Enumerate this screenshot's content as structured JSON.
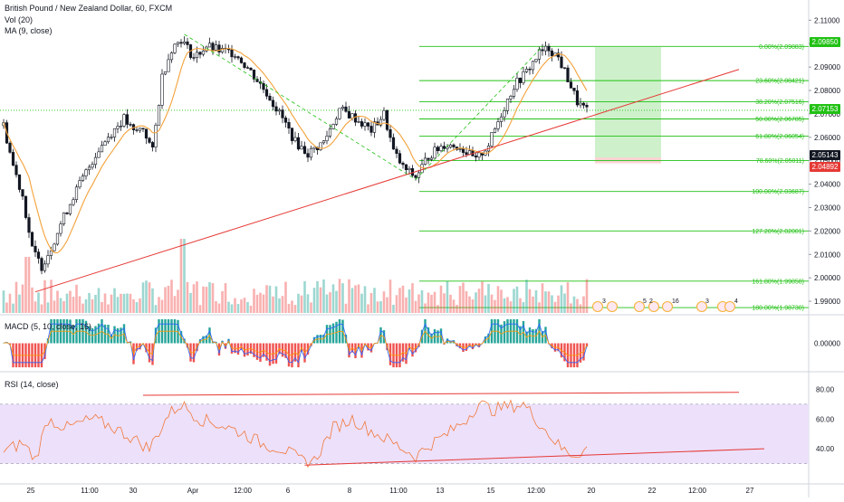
{
  "header": {
    "symbol_title": "British Pound / New Zealand Dollar, 60, FXCM",
    "vol_label": "Vol (20)",
    "ma_label": "MA (9, close)",
    "macd_label": "MACD (5, 10, close, 16)",
    "rsi_label": "RSI (14, close)"
  },
  "colors": {
    "bull": "#26a69a",
    "bear": "#ef5350",
    "ma": "#f4a23a",
    "fib": "#21c114",
    "trendline": "#e53935",
    "rsi_band": "#ede0fb",
    "rsi_line": "#f07a3c",
    "macd_line": "#2962ff",
    "signal_line": "#ff9800"
  },
  "price_axis": {
    "ticks": [
      "2.11000",
      "2.10000",
      "2.09000",
      "2.08000",
      "2.07000",
      "2.06000",
      "2.05000",
      "2.04000",
      "2.03000",
      "2.02000",
      "2.01000",
      "2.00000",
      "1.99000"
    ],
    "tags": [
      {
        "value": "2.09850",
        "color": "#21c114"
      },
      {
        "value": "2.07153",
        "color": "#21c114"
      },
      {
        "value": "2.05143",
        "color": "#131722"
      },
      {
        "value": "2.04892",
        "color": "#e53935"
      }
    ]
  },
  "macd_axis": {
    "ticks": [
      "0.00000"
    ]
  },
  "rsi_axis": {
    "ticks": [
      "80.00",
      "60.00",
      "40.00"
    ]
  },
  "time_axis": [
    "25",
    "11:00",
    "30",
    "Apr",
    "12:00",
    "6",
    "8",
    "11:00",
    "13",
    "15",
    "12:00",
    "20",
    "22",
    "12:00",
    "27"
  ],
  "fib_levels": [
    {
      "label": "0.00%(2.09883)",
      "price": 2.09883
    },
    {
      "label": "23.60%(2.08421)",
      "price": 2.08421
    },
    {
      "label": "38.20%(2.07516)",
      "price": 2.07516
    },
    {
      "label": "50.00%(2.06785)",
      "price": 2.06785
    },
    {
      "label": "61.80%(2.06054)",
      "price": 2.06054
    },
    {
      "label": "78.60%(2.05011)",
      "price": 2.05011
    },
    {
      "label": "100.00%(2.03687)",
      "price": 2.03687
    },
    {
      "label": "127.20%(2.02001)",
      "price": 2.02001
    },
    {
      "label": "161.80%(1.99858)",
      "price": 1.99858
    },
    {
      "label": "180.00%(1.98730)",
      "price": 1.9873
    }
  ],
  "event_badges": [
    "3",
    "5",
    "2",
    "16",
    "3",
    "4"
  ],
  "chart_data": {
    "type": "candlestick",
    "symbol": "British Pound / New Zealand Dollar",
    "interval": "60",
    "source": "FXCM",
    "y_range": [
      1.985,
      2.114
    ],
    "price_path_anchors": [
      [
        0,
        2.065
      ],
      [
        3,
        2.048
      ],
      [
        6,
        2.035
      ],
      [
        9,
        2.012
      ],
      [
        12,
        2.005
      ],
      [
        15,
        2.013
      ],
      [
        18,
        2.023
      ],
      [
        22,
        2.035
      ],
      [
        26,
        2.045
      ],
      [
        30,
        2.055
      ],
      [
        34,
        2.062
      ],
      [
        38,
        2.068
      ],
      [
        41,
        2.062
      ],
      [
        44,
        2.064
      ],
      [
        47,
        2.054
      ],
      [
        50,
        2.086
      ],
      [
        53,
        2.098
      ],
      [
        56,
        2.102
      ],
      [
        60,
        2.094
      ],
      [
        64,
        2.099
      ],
      [
        68,
        2.097
      ],
      [
        73,
        2.096
      ],
      [
        78,
        2.088
      ],
      [
        83,
        2.079
      ],
      [
        88,
        2.068
      ],
      [
        92,
        2.058
      ],
      [
        96,
        2.053
      ],
      [
        101,
        2.058
      ],
      [
        106,
        2.072
      ],
      [
        111,
        2.068
      ],
      [
        116,
        2.063
      ],
      [
        120,
        2.07
      ],
      [
        123,
        2.054
      ],
      [
        126,
        2.047
      ],
      [
        130,
        2.043
      ],
      [
        134,
        2.052
      ],
      [
        139,
        2.057
      ],
      [
        144,
        2.056
      ],
      [
        149,
        2.05
      ],
      [
        153,
        2.057
      ],
      [
        157,
        2.07
      ],
      [
        161,
        2.082
      ],
      [
        165,
        2.088
      ],
      [
        169,
        2.096
      ],
      [
        172,
        2.098
      ],
      [
        175,
        2.094
      ],
      [
        178,
        2.085
      ],
      [
        181,
        2.075
      ],
      [
        184,
        2.071
      ]
    ],
    "last_price": 2.07153,
    "position_box": {
      "stop": 2.04892,
      "entry": 2.05143,
      "target": 2.0985
    },
    "trendline_price": {
      "start": [
        10,
        1.994
      ],
      "end": [
        232,
        2.089
      ]
    },
    "rsi_range": [
      20,
      90
    ],
    "rsi_band": [
      30,
      70
    ],
    "rsi_path_anchors": [
      [
        0,
        38
      ],
      [
        6,
        44
      ],
      [
        10,
        33
      ],
      [
        14,
        60
      ],
      [
        20,
        54
      ],
      [
        28,
        60
      ],
      [
        34,
        55
      ],
      [
        40,
        48
      ],
      [
        46,
        40
      ],
      [
        52,
        63
      ],
      [
        56,
        70
      ],
      [
        62,
        60
      ],
      [
        70,
        55
      ],
      [
        76,
        50
      ],
      [
        82,
        43
      ],
      [
        88,
        40
      ],
      [
        94,
        32
      ],
      [
        98,
        32
      ],
      [
        104,
        54
      ],
      [
        110,
        60
      ],
      [
        116,
        52
      ],
      [
        122,
        45
      ],
      [
        126,
        40
      ],
      [
        130,
        35
      ],
      [
        134,
        42
      ],
      [
        140,
        50
      ],
      [
        146,
        60
      ],
      [
        150,
        71
      ],
      [
        154,
        66
      ],
      [
        158,
        68
      ],
      [
        164,
        70
      ],
      [
        170,
        55
      ],
      [
        176,
        40
      ],
      [
        180,
        36
      ],
      [
        184,
        40
      ]
    ],
    "rsi_trendlines": [
      {
        "from": [
          44,
          76
        ],
        "to": [
          232,
          78
        ]
      },
      {
        "from": [
          95,
          29
        ],
        "to": [
          240,
          40
        ]
      }
    ],
    "macd_range": [
      -0.003,
      0.003
    ]
  }
}
